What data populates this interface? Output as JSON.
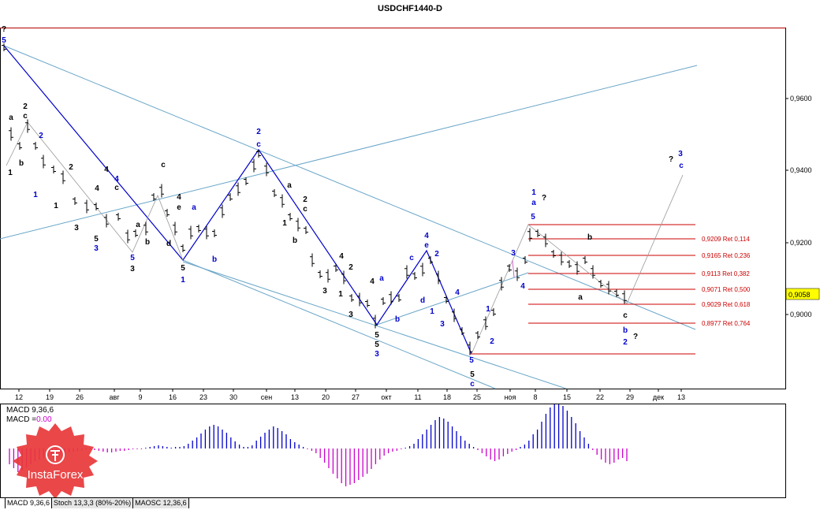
{
  "chart_title": "USDCHF1440-D",
  "chart_data": {
    "type": "candlestick-wave-analysis",
    "symbol": "USDCHF",
    "timeframe": "D1",
    "y_axis_ticks": [
      "0,9600",
      "0,9400",
      "0,9200",
      "0,9000"
    ],
    "current_price_label": "0,9058",
    "x_axis_ticks": [
      "12",
      "19",
      "26",
      "авг",
      "9",
      "16",
      "23",
      "30",
      "сен",
      "13",
      "20",
      "27",
      "окт",
      "11",
      "18",
      "25",
      "ноя",
      "8",
      "15",
      "22",
      "29",
      "дек",
      "13"
    ],
    "fib_levels": [
      {
        "label": "0,9209 Ret 0,114"
      },
      {
        "label": "0,9165 Ret 0,236"
      },
      {
        "label": "0,9113 Ret 0,382"
      },
      {
        "label": "0,9071 Ret 0,500"
      },
      {
        "label": "0,9029 Ret 0,618"
      },
      {
        "label": "0,8977 Ret 0,764"
      }
    ]
  },
  "indicator": {
    "macd_label": "MACD 9,36,6",
    "macd_value_label": "MACD =",
    "macd_value": "0.00"
  },
  "tabs": [
    {
      "label": "MACD 9,36,6"
    },
    {
      "label": "Stoch 13,3,3 (80%-20%)"
    },
    {
      "label": "MAOSC 12,36,6"
    }
  ],
  "logo_text": "InstaForex",
  "colors": {
    "wave_blue": "#0000cc",
    "wave_black": "#000000",
    "fib_red": "#cc0000",
    "trend_light": "#6aa6c8",
    "macd_pos": "#0000cc",
    "macd_neg": "#cc00cc",
    "logo_red": "#e8373a"
  }
}
